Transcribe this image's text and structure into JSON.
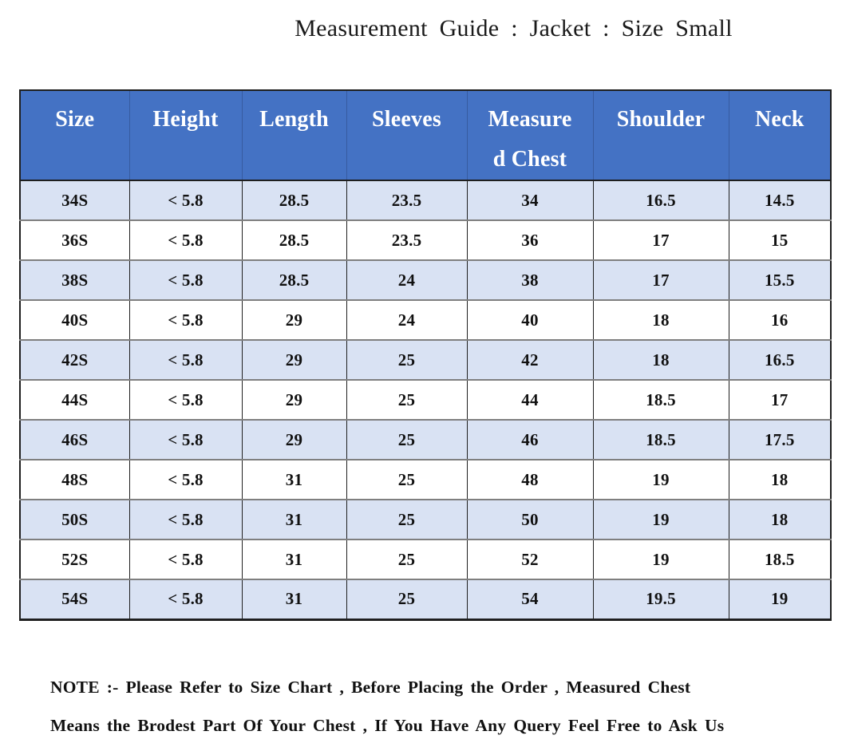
{
  "title": "Measurement Guide : Jacket : Size Small",
  "table": {
    "headers": [
      "Size",
      "Height",
      "Length",
      "Sleeves",
      "Measured Chest",
      "Shoulder",
      "Neck"
    ],
    "measured_chest_wrap": [
      "Measure",
      "d Chest"
    ],
    "rows": [
      [
        "34S",
        "< 5.8",
        "28.5",
        "23.5",
        "34",
        "16.5",
        "14.5"
      ],
      [
        "36S",
        "< 5.8",
        "28.5",
        "23.5",
        "36",
        "17",
        "15"
      ],
      [
        "38S",
        "< 5.8",
        "28.5",
        "24",
        "38",
        "17",
        "15.5"
      ],
      [
        "40S",
        "< 5.8",
        "29",
        "24",
        "40",
        "18",
        "16"
      ],
      [
        "42S",
        "< 5.8",
        "29",
        "25",
        "42",
        "18",
        "16.5"
      ],
      [
        "44S",
        "< 5.8",
        "29",
        "25",
        "44",
        "18.5",
        "17"
      ],
      [
        "46S",
        "< 5.8",
        "29",
        "25",
        "46",
        "18.5",
        "17.5"
      ],
      [
        "48S",
        "< 5.8",
        "31",
        "25",
        "48",
        "19",
        "18"
      ],
      [
        "50S",
        "< 5.8",
        "31",
        "25",
        "50",
        "19",
        "18"
      ],
      [
        "52S",
        "< 5.8",
        "31",
        "25",
        "52",
        "19",
        "18.5"
      ],
      [
        "54S",
        "< 5.8",
        "31",
        "25",
        "54",
        "19.5",
        "19"
      ]
    ]
  },
  "note": {
    "line1": "NOTE :- Please Refer to Size Chart , Before Placing the Order , Measured Chest",
    "line2": "Means the Brodest Part Of Your Chest , If You Have Any Query Feel Free to Ask Us"
  },
  "colors": {
    "header_bg": "#4472C4",
    "header_text": "#FFFFFF",
    "band_row_bg": "#D9E2F3",
    "plain_row_bg": "#FFFFFF",
    "border_dark": "#1F1F1F",
    "border_gray": "#7F7F7F",
    "body_text": "#111111"
  }
}
